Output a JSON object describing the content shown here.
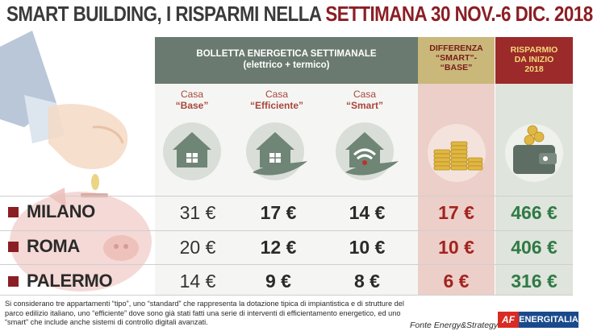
{
  "title": {
    "part1": "SMART BUILDING, I RISPARMI NELLA ",
    "part2": "SETTIMANA 30 NOV.-6 DIC. 2018"
  },
  "header": {
    "bolletta_line1": "BOLLETTA ENERGETICA SETTIMANALE",
    "bolletta_line2": "(elettrico + termico)",
    "differenza_line1": "DIFFERENZA",
    "differenza_line2": "“SMART”-",
    "differenza_line3": "“BASE”",
    "risparmio_line1": "RISPARMIO",
    "risparmio_line2": "DA INIZIO",
    "risparmio_line3": "2018"
  },
  "houses": [
    {
      "casa": "Casa",
      "type": "“Base”",
      "icon": "house-icon"
    },
    {
      "casa": "Casa",
      "type": "“Efficiente”",
      "icon": "house-leaf-icon"
    },
    {
      "casa": "Casa",
      "type": "“Smart”",
      "icon": "house-wifi-icon"
    }
  ],
  "column_icons": {
    "differenza": "coins-stack-icon",
    "risparmio": "wallet-coins-icon"
  },
  "rows": [
    {
      "city": "MILANO",
      "base": "31 €",
      "efficiente": "17 €",
      "smart": "14 €",
      "differenza": "17 €",
      "risparmio": "466 €"
    },
    {
      "city": "ROMA",
      "base": "20 €",
      "efficiente": "12 €",
      "smart": "10 €",
      "differenza": "10 €",
      "risparmio": "406 €"
    },
    {
      "city": "PALERMO",
      "base": "14 €",
      "efficiente": "9 €",
      "smart": "8 €",
      "differenza": "6 €",
      "risparmio": "316 €"
    }
  ],
  "footnote": "Si considerano tre appartamenti “tipo”, uno “standard” che rappresenta la dotazione tipica di impiantistica e di strutture del parco edilizio italiano, uno “efficiente” dove sono già stati fatti una serie di interventi di efficientamento energetico, ed uno “smart” che include anche sistemi di controllo digitali avanzati.",
  "source": "Fonte Energy&Strategy",
  "logo": {
    "mark": "AF",
    "name": "ENERGITALIA"
  },
  "colors": {
    "accent_red": "#8b1e24",
    "header_green": "#6a7a70",
    "diff_red": "#a3231e",
    "saving_green": "#2f7a45",
    "header_gold": "#c9b87a"
  }
}
